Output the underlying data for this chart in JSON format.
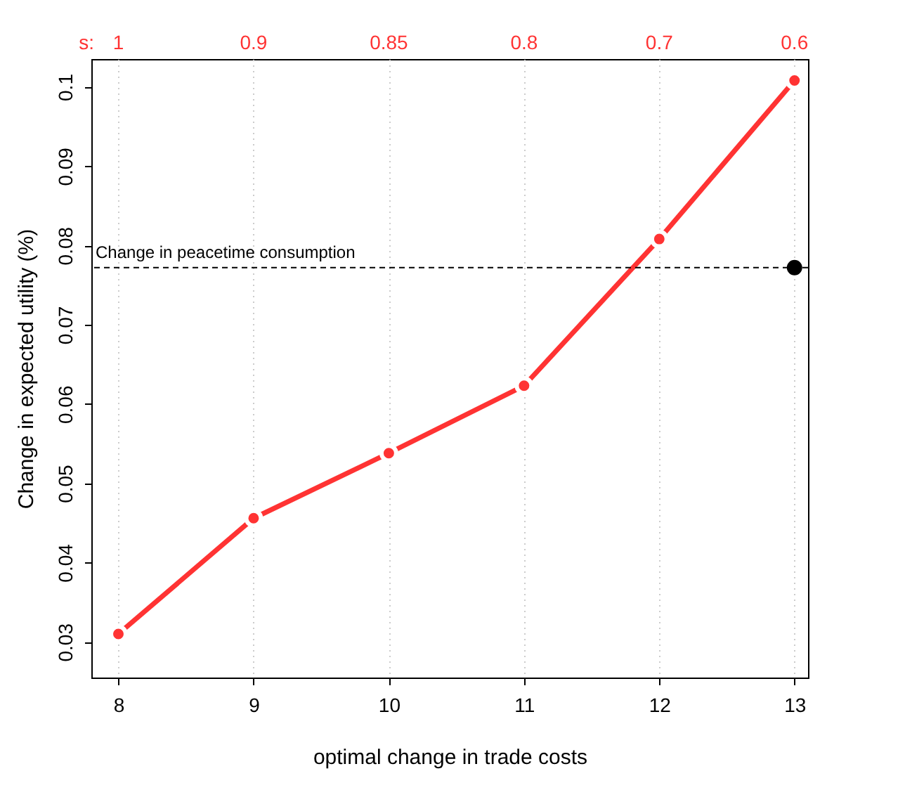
{
  "chart_data": {
    "type": "line",
    "xlabel": "optimal change in trade costs",
    "ylabel": "Change in expected utility (%)",
    "x": [
      8,
      9,
      10,
      11,
      12,
      13
    ],
    "series": [
      {
        "color": "#ff3333",
        "values": [
          0.031,
          0.0456,
          0.0538,
          0.0623,
          0.0808,
          0.1008
        ]
      },
      {
        "type": "scatter",
        "color": "#000000",
        "x": [
          13
        ],
        "values": [
          0.0772
        ]
      }
    ],
    "xlim": [
      7.8,
      13.1
    ],
    "xticks": [
      8,
      9,
      10,
      11,
      12,
      13
    ],
    "ylim": [
      0.0255,
      0.1035
    ],
    "yticks": [
      0.03,
      0.04,
      0.05,
      0.06,
      0.07,
      0.08,
      0.09,
      0.1
    ],
    "ref_lines": [
      {
        "axis": "y",
        "value": 0.0772,
        "label": "Change in peacetime consumption",
        "color": "#000000",
        "line_style": "dashed"
      }
    ],
    "annotations": [
      "s:",
      "1",
      "0.9",
      "0.85",
      "0.8",
      "0.7",
      "0.6"
    ],
    "grid": "x",
    "marker": "circle",
    "line_style": "solid"
  }
}
